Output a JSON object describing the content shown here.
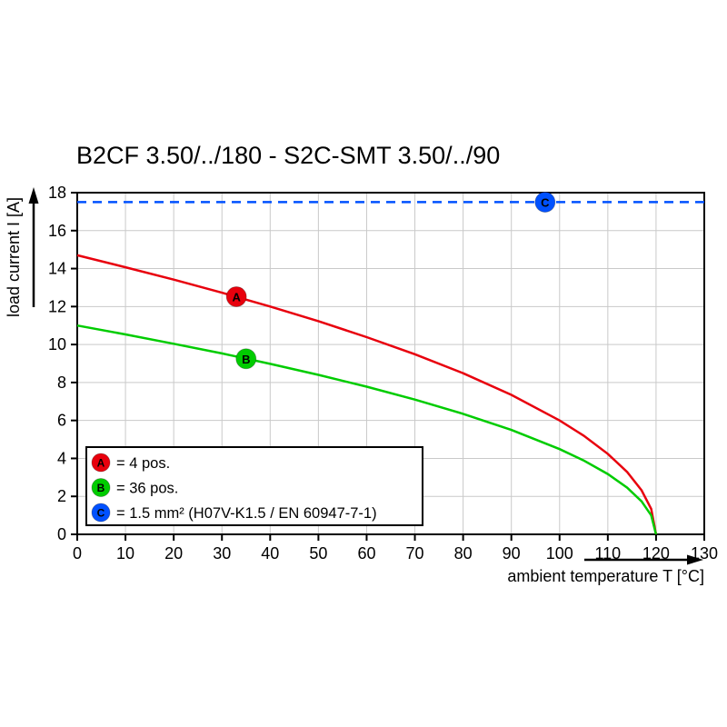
{
  "title": "B2CF 3.50/../180 - S2C-SMT 3.50/../90",
  "chart_data": {
    "type": "line",
    "title": "B2CF 3.50/../180 - S2C-SMT 3.50/../90",
    "xlabel": "ambient temperature T [°C]",
    "ylabel": "load current I [A]",
    "xlim": [
      0,
      130
    ],
    "ylim": [
      0,
      18
    ],
    "xticks": [
      0,
      10,
      20,
      30,
      40,
      50,
      60,
      70,
      80,
      90,
      100,
      110,
      120,
      130
    ],
    "yticks": [
      0,
      2,
      4,
      6,
      8,
      10,
      12,
      14,
      16,
      18
    ],
    "grid": true,
    "legend_position": "bottom-left-inside",
    "series": [
      {
        "name": "A",
        "legend_label": "= 4 pos.",
        "color": "#e8000d",
        "line_style": "solid",
        "x": [
          0,
          10,
          20,
          30,
          40,
          50,
          60,
          70,
          80,
          90,
          100,
          105,
          110,
          114,
          117,
          119,
          120
        ],
        "y": [
          14.7,
          14.07,
          13.42,
          12.73,
          12.0,
          11.23,
          10.39,
          9.49,
          8.49,
          7.35,
          6.0,
          5.2,
          4.24,
          3.29,
          2.32,
          1.34,
          0
        ],
        "marker": {
          "label": "A",
          "x": 33,
          "y": 12.52
        }
      },
      {
        "name": "B",
        "legend_label": "= 36 pos.",
        "color": "#00cc00",
        "line_style": "solid",
        "x": [
          0,
          10,
          20,
          30,
          40,
          50,
          60,
          70,
          80,
          90,
          100,
          105,
          110,
          114,
          117,
          119,
          120
        ],
        "y": [
          11.0,
          10.53,
          10.04,
          9.53,
          8.98,
          8.4,
          7.78,
          7.1,
          6.35,
          5.5,
          4.49,
          3.89,
          3.18,
          2.46,
          1.74,
          1.0,
          0
        ],
        "marker": {
          "label": "B",
          "x": 35,
          "y": 9.25
        }
      },
      {
        "name": "C",
        "legend_label": "= 1.5 mm² (H07V-K1.5 / EN 60947-7-1)",
        "color": "#0051ff",
        "line_style": "dashed",
        "x": [
          0,
          130
        ],
        "y": [
          17.5,
          17.5
        ],
        "marker": {
          "label": "C",
          "x": 97,
          "y": 17.5
        }
      }
    ]
  }
}
